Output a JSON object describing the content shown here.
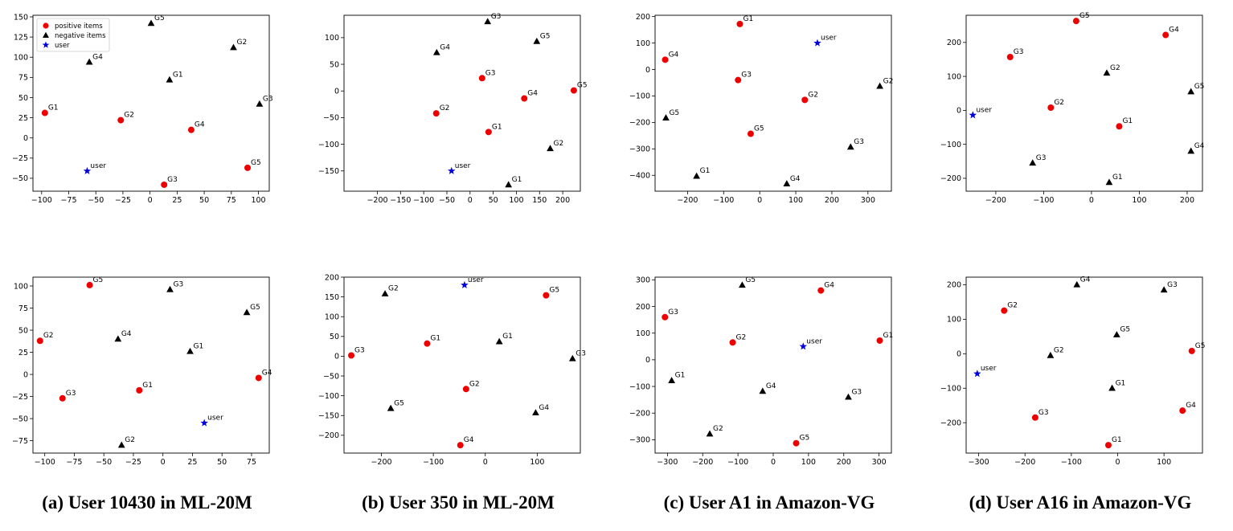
{
  "legend": {
    "positive_label": "positive items",
    "negative_label": "negative items",
    "user_label": "user"
  },
  "colors": {
    "positive": "#ee0000",
    "negative": "#000000",
    "user": "#0000dd"
  },
  "captions": [
    "(a) User 10430 in ML-20M",
    "(b) User 350 in ML-20M",
    "(c) User A1 in Amazon-VG",
    "(d) User A16 in Amazon-VG"
  ],
  "chart_data": [
    {
      "type": "scatter",
      "xlim": [
        -108,
        110
      ],
      "ylim": [
        -66,
        152
      ],
      "xticks": [
        -100,
        -75,
        -50,
        -25,
        0,
        25,
        50,
        75,
        100
      ],
      "yticks": [
        -50,
        -25,
        0,
        25,
        50,
        75,
        100,
        125,
        150
      ],
      "legend": "top-left",
      "user": {
        "label": "user",
        "x": -58,
        "y": -41
      },
      "positive": [
        {
          "label": "G1",
          "x": -97,
          "y": 31
        },
        {
          "label": "G2",
          "x": -27,
          "y": 22
        },
        {
          "label": "G3",
          "x": 13,
          "y": -58
        },
        {
          "label": "G4",
          "x": 38,
          "y": 10
        },
        {
          "label": "G5",
          "x": 90,
          "y": -37
        }
      ],
      "negative": [
        {
          "label": "G1",
          "x": 18,
          "y": 72
        },
        {
          "label": "G2",
          "x": 77,
          "y": 112
        },
        {
          "label": "G3",
          "x": 101,
          "y": 42
        },
        {
          "label": "G4",
          "x": -56,
          "y": 94
        },
        {
          "label": "G5",
          "x": 1,
          "y": 142
        }
      ]
    },
    {
      "type": "scatter",
      "xlim": [
        -272,
        238
      ],
      "ylim": [
        -188,
        142
      ],
      "xticks": [
        -200,
        -150,
        -100,
        -50,
        0,
        50,
        100,
        150,
        200
      ],
      "yticks": [
        -150,
        -100,
        -50,
        0,
        50,
        100
      ],
      "user": {
        "label": "user",
        "x": -40,
        "y": -150
      },
      "positive": [
        {
          "label": "G1",
          "x": 40,
          "y": -77
        },
        {
          "label": "G2",
          "x": -73,
          "y": -42
        },
        {
          "label": "G3",
          "x": 26,
          "y": 24
        },
        {
          "label": "G4",
          "x": 117,
          "y": -14
        },
        {
          "label": "G5",
          "x": 224,
          "y": 1
        }
      ],
      "negative": [
        {
          "label": "G1",
          "x": 83,
          "y": -176
        },
        {
          "label": "G2",
          "x": 173,
          "y": -108
        },
        {
          "label": "G3",
          "x": 38,
          "y": 130
        },
        {
          "label": "G4",
          "x": -72,
          "y": 72
        },
        {
          "label": "G5",
          "x": 144,
          "y": 93
        }
      ]
    },
    {
      "type": "scatter",
      "xlim": [
        -290,
        365
      ],
      "ylim": [
        -460,
        205
      ],
      "xticks": [
        -200,
        -100,
        0,
        100,
        200,
        300
      ],
      "yticks": [
        -400,
        -300,
        -200,
        -100,
        0,
        100,
        200
      ],
      "user": {
        "label": "user",
        "x": 160,
        "y": 100
      },
      "positive": [
        {
          "label": "G1",
          "x": -55,
          "y": 172
        },
        {
          "label": "G2",
          "x": 125,
          "y": -115
        },
        {
          "label": "G3",
          "x": -60,
          "y": -40
        },
        {
          "label": "G4",
          "x": -262,
          "y": 37
        },
        {
          "label": "G5",
          "x": -25,
          "y": -243
        }
      ],
      "negative": [
        {
          "label": "G1",
          "x": -175,
          "y": -403
        },
        {
          "label": "G2",
          "x": 333,
          "y": -63
        },
        {
          "label": "G3",
          "x": 252,
          "y": -293
        },
        {
          "label": "G4",
          "x": 75,
          "y": -432
        },
        {
          "label": "G5",
          "x": -260,
          "y": -183
        }
      ]
    },
    {
      "type": "scatter",
      "xlim": [
        -262,
        232
      ],
      "ylim": [
        -238,
        280
      ],
      "xticks": [
        -200,
        -100,
        0,
        100,
        200
      ],
      "yticks": [
        -200,
        -100,
        0,
        100,
        200
      ],
      "user": {
        "label": "user",
        "x": -248,
        "y": -14
      },
      "positive": [
        {
          "label": "G1",
          "x": 58,
          "y": -47
        },
        {
          "label": "G2",
          "x": -85,
          "y": 8
        },
        {
          "label": "G3",
          "x": -170,
          "y": 157
        },
        {
          "label": "G4",
          "x": 155,
          "y": 222
        },
        {
          "label": "G5",
          "x": -32,
          "y": 263
        }
      ],
      "negative": [
        {
          "label": "G1",
          "x": 37,
          "y": -212
        },
        {
          "label": "G2",
          "x": 32,
          "y": 110
        },
        {
          "label": "G3",
          "x": -123,
          "y": -155
        },
        {
          "label": "G4",
          "x": 208,
          "y": -120
        },
        {
          "label": "G5",
          "x": 208,
          "y": 55
        }
      ]
    },
    {
      "type": "scatter",
      "xlim": [
        -110,
        90
      ],
      "ylim": [
        -89,
        110
      ],
      "xticks": [
        -100,
        -75,
        -50,
        -25,
        0,
        25,
        50,
        75
      ],
      "yticks": [
        -75,
        -50,
        -25,
        0,
        25,
        50,
        75,
        100
      ],
      "user": {
        "label": "user",
        "x": 35,
        "y": -55
      },
      "positive": [
        {
          "label": "G1",
          "x": -20,
          "y": -18
        },
        {
          "label": "G2",
          "x": -104,
          "y": 38
        },
        {
          "label": "G3",
          "x": -85,
          "y": -27
        },
        {
          "label": "G4",
          "x": 81,
          "y": -4
        },
        {
          "label": "G5",
          "x": -62,
          "y": 101
        }
      ],
      "negative": [
        {
          "label": "G1",
          "x": 23,
          "y": 26
        },
        {
          "label": "G2",
          "x": -35,
          "y": -80
        },
        {
          "label": "G3",
          "x": 6,
          "y": 96
        },
        {
          "label": "G4",
          "x": -38,
          "y": 40
        },
        {
          "label": "G5",
          "x": 71,
          "y": 70
        }
      ]
    },
    {
      "type": "scatter",
      "xlim": [
        -272,
        183
      ],
      "ylim": [
        -245,
        200
      ],
      "xticks": [
        -200,
        -100,
        0,
        100
      ],
      "yticks": [
        -200,
        -150,
        -100,
        -50,
        0,
        50,
        100,
        150,
        200
      ],
      "user": {
        "label": "user",
        "x": -40,
        "y": 180
      },
      "positive": [
        {
          "label": "G1",
          "x": -112,
          "y": 32
        },
        {
          "label": "G2",
          "x": -37,
          "y": -83
        },
        {
          "label": "G3",
          "x": -258,
          "y": 2
        },
        {
          "label": "G4",
          "x": -48,
          "y": -225
        },
        {
          "label": "G5",
          "x": 117,
          "y": 154
        }
      ],
      "negative": [
        {
          "label": "G1",
          "x": 27,
          "y": 37
        },
        {
          "label": "G2",
          "x": -193,
          "y": 158
        },
        {
          "label": "G3",
          "x": 168,
          "y": -6
        },
        {
          "label": "G4",
          "x": 97,
          "y": -143
        },
        {
          "label": "G5",
          "x": -182,
          "y": -132
        }
      ]
    },
    {
      "type": "scatter",
      "xlim": [
        -335,
        335
      ],
      "ylim": [
        -350,
        310
      ],
      "xticks": [
        -300,
        -200,
        -100,
        0,
        100,
        200,
        300
      ],
      "yticks": [
        -300,
        -200,
        -100,
        0,
        100,
        200,
        300
      ],
      "user": {
        "label": "user",
        "x": 85,
        "y": 50
      },
      "positive": [
        {
          "label": "G1",
          "x": 302,
          "y": 72
        },
        {
          "label": "G2",
          "x": -115,
          "y": 65
        },
        {
          "label": "G3",
          "x": -307,
          "y": 160
        },
        {
          "label": "G4",
          "x": 135,
          "y": 260
        },
        {
          "label": "G5",
          "x": 65,
          "y": -313
        }
      ],
      "negative": [
        {
          "label": "G1",
          "x": -288,
          "y": -78
        },
        {
          "label": "G2",
          "x": -180,
          "y": -278
        },
        {
          "label": "G3",
          "x": 213,
          "y": -140
        },
        {
          "label": "G4",
          "x": -30,
          "y": -118
        },
        {
          "label": "G5",
          "x": -88,
          "y": 280
        }
      ]
    },
    {
      "type": "scatter",
      "xlim": [
        -327,
        183
      ],
      "ylim": [
        -288,
        222
      ],
      "xticks": [
        -300,
        -200,
        -100,
        0,
        100
      ],
      "yticks": [
        -200,
        -100,
        0,
        100,
        200
      ],
      "user": {
        "label": "user",
        "x": -303,
        "y": -58
      },
      "positive": [
        {
          "label": "G1",
          "x": -20,
          "y": -265
        },
        {
          "label": "G2",
          "x": -245,
          "y": 125
        },
        {
          "label": "G3",
          "x": -178,
          "y": -185
        },
        {
          "label": "G4",
          "x": 140,
          "y": -165
        },
        {
          "label": "G5",
          "x": 160,
          "y": 8
        }
      ],
      "negative": [
        {
          "label": "G1",
          "x": -12,
          "y": -100
        },
        {
          "label": "G2",
          "x": -145,
          "y": -5
        },
        {
          "label": "G3",
          "x": 100,
          "y": 185
        },
        {
          "label": "G4",
          "x": -88,
          "y": 200
        },
        {
          "label": "G5",
          "x": -2,
          "y": 55
        }
      ]
    }
  ]
}
